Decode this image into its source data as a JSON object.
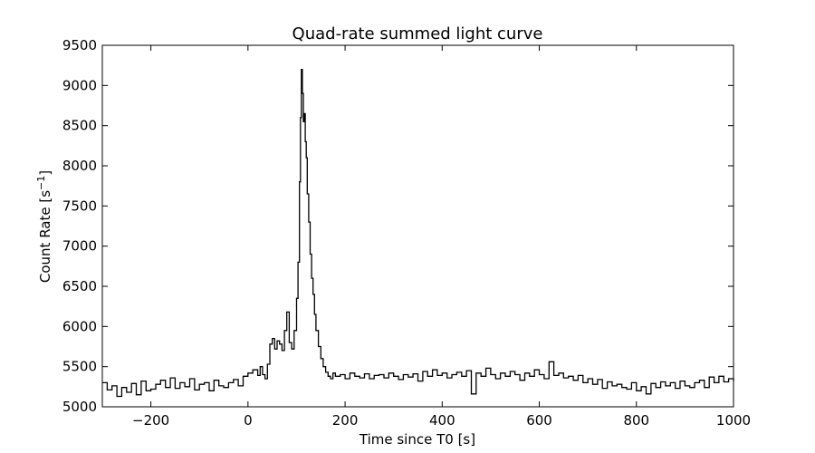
{
  "chart_data": {
    "type": "line",
    "title": "Quad-rate summed light curve",
    "xlabel": "Time since T0 [s]",
    "ylabel_main": "Count Rate [s",
    "ylabel_sup": "−1",
    "ylabel_end": "]",
    "xlim": [
      -300,
      1000
    ],
    "ylim": [
      5000,
      9500
    ],
    "x_ticks": [
      -200,
      0,
      200,
      400,
      600,
      800,
      1000
    ],
    "x_tick_labels": [
      "−200",
      "0",
      "200",
      "400",
      "600",
      "800",
      "1000"
    ],
    "y_ticks": [
      5000,
      5500,
      6000,
      6500,
      7000,
      7500,
      8000,
      8500,
      9000,
      9500
    ],
    "y_tick_labels": [
      "5000",
      "5500",
      "6000",
      "6500",
      "7000",
      "7500",
      "8000",
      "8500",
      "9000",
      "9500"
    ],
    "grid": false,
    "line_color": "#000000",
    "series": [
      {
        "x": [
          -300,
          -290,
          -280,
          -270,
          -260,
          -250,
          -240,
          -230,
          -220,
          -210,
          -200,
          -190,
          -180,
          -170,
          -160,
          -150,
          -140,
          -130,
          -120,
          -110,
          -100,
          -90,
          -80,
          -70,
          -60,
          -50,
          -40,
          -30,
          -20,
          -10,
          0,
          10,
          20,
          25,
          30,
          35,
          40,
          45,
          50,
          55,
          60,
          65,
          70,
          75,
          80,
          85,
          90,
          95,
          100,
          103,
          106,
          108,
          110,
          112,
          114,
          116,
          118,
          120,
          122,
          125,
          128,
          131,
          134,
          137,
          140,
          145,
          150,
          155,
          160,
          165,
          170,
          175,
          180,
          190,
          200,
          210,
          220,
          230,
          240,
          250,
          260,
          270,
          280,
          290,
          300,
          310,
          320,
          330,
          340,
          350,
          360,
          370,
          380,
          390,
          400,
          410,
          420,
          430,
          440,
          450,
          460,
          470,
          480,
          490,
          500,
          510,
          520,
          530,
          540,
          550,
          560,
          570,
          580,
          590,
          600,
          610,
          620,
          630,
          640,
          650,
          660,
          670,
          680,
          690,
          700,
          710,
          720,
          730,
          740,
          750,
          760,
          770,
          780,
          790,
          800,
          810,
          820,
          830,
          840,
          850,
          860,
          870,
          880,
          890,
          900,
          910,
          920,
          930,
          940,
          950,
          960,
          970,
          980,
          990,
          1000
        ],
        "y": [
          5300,
          5210,
          5260,
          5130,
          5240,
          5180,
          5290,
          5150,
          5320,
          5200,
          5220,
          5280,
          5330,
          5240,
          5360,
          5230,
          5300,
          5250,
          5350,
          5210,
          5280,
          5300,
          5200,
          5330,
          5260,
          5240,
          5300,
          5340,
          5260,
          5380,
          5420,
          5460,
          5390,
          5500,
          5400,
          5350,
          5530,
          5780,
          5850,
          5720,
          5820,
          5780,
          5700,
          5950,
          6180,
          5800,
          5720,
          5950,
          6350,
          6800,
          7800,
          8600,
          9200,
          8900,
          8550,
          8650,
          8300,
          8100,
          7650,
          7300,
          6900,
          6600,
          6400,
          6150,
          5950,
          5750,
          5600,
          5500,
          5430,
          5380,
          5350,
          5420,
          5380,
          5400,
          5350,
          5420,
          5380,
          5360,
          5410,
          5350,
          5390,
          5400,
          5360,
          5420,
          5380,
          5340,
          5400,
          5370,
          5410,
          5320,
          5440,
          5380,
          5460,
          5390,
          5420,
          5360,
          5400,
          5430,
          5380,
          5450,
          5160,
          5420,
          5380,
          5480,
          5400,
          5350,
          5420,
          5380,
          5440,
          5400,
          5330,
          5420,
          5380,
          5460,
          5400,
          5350,
          5560,
          5390,
          5420,
          5360,
          5380,
          5330,
          5390,
          5300,
          5350,
          5280,
          5340,
          5230,
          5310,
          5260,
          5280,
          5240,
          5220,
          5300,
          5200,
          5250,
          5160,
          5290,
          5240,
          5310,
          5260,
          5300,
          5230,
          5320,
          5260,
          5240,
          5300,
          5330,
          5240,
          5370,
          5300,
          5380,
          5310,
          5350,
          5320
        ]
      }
    ]
  }
}
